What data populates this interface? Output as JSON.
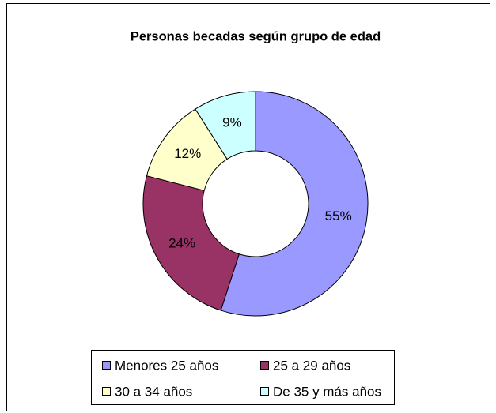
{
  "chart_data": {
    "type": "donut",
    "title": "Personas becadas según grupo de edad",
    "categories": [
      "Menores 25 años",
      "25 a 29 años",
      "30 a 34 años",
      "De 35 y más años"
    ],
    "values": [
      55,
      24,
      12,
      9
    ],
    "value_labels": [
      "55%",
      "24%",
      "12%",
      "9%"
    ],
    "colors": [
      "#9999ff",
      "#993366",
      "#ffffcc",
      "#ccffff"
    ],
    "legend": "bottom"
  }
}
